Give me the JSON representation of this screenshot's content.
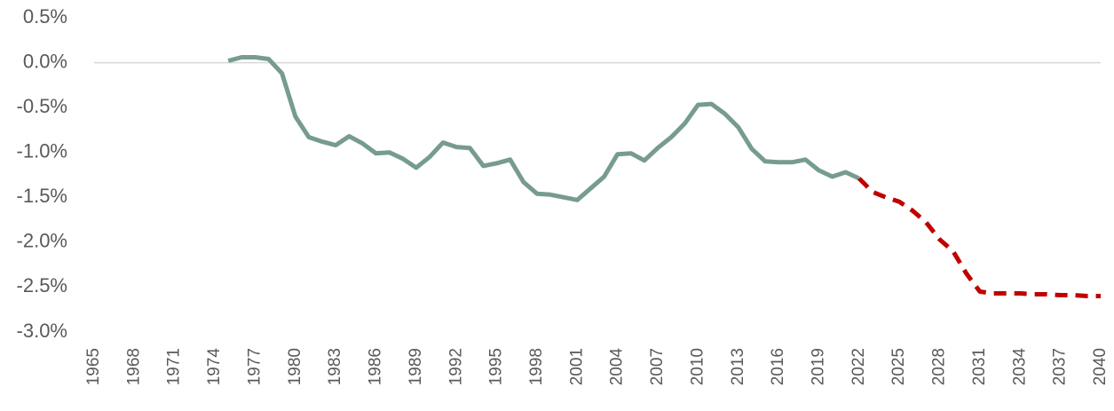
{
  "chart_data": {
    "type": "line",
    "x": [
      1975,
      1976,
      1977,
      1978,
      1979,
      1980,
      1981,
      1982,
      1983,
      1984,
      1985,
      1986,
      1987,
      1988,
      1989,
      1990,
      1991,
      1992,
      1993,
      1994,
      1995,
      1996,
      1997,
      1998,
      1999,
      2000,
      2001,
      2002,
      2003,
      2004,
      2005,
      2006,
      2007,
      2008,
      2009,
      2010,
      2011,
      2012,
      2013,
      2014,
      2015,
      2016,
      2017,
      2018,
      2019,
      2020,
      2021,
      2022,
      2023,
      2024,
      2025,
      2026,
      2027,
      2028,
      2029,
      2030,
      2031,
      2032,
      2033,
      2034,
      2035,
      2036,
      2037,
      2038,
      2039,
      2040
    ],
    "series": [
      {
        "color": "#779b91",
        "line_style": "solid",
        "values": [
          0.02,
          0.06,
          0.06,
          0.04,
          -0.12,
          -0.6,
          -0.83,
          -0.88,
          -0.92,
          -0.82,
          -0.9,
          -1.01,
          -1.0,
          -1.07,
          -1.17,
          -1.05,
          -0.89,
          -0.94,
          -0.95,
          -1.15,
          -1.12,
          -1.08,
          -1.33,
          -1.46,
          -1.47,
          -1.5,
          -1.53,
          -1.4,
          -1.27,
          -1.02,
          -1.01,
          -1.09,
          -0.95,
          -0.83,
          -0.68,
          -0.47,
          -0.46,
          -0.57,
          -0.72,
          -0.96,
          -1.1,
          -1.11,
          -1.11,
          -1.08,
          -1.2,
          -1.27,
          -1.22,
          -1.29,
          null,
          null,
          null,
          null,
          null,
          null,
          null,
          null,
          null,
          null,
          null,
          null,
          null,
          null,
          null,
          null,
          null,
          null
        ]
      },
      {
        "color": "#c00000",
        "line_style": "dashed",
        "values": [
          null,
          null,
          null,
          null,
          null,
          null,
          null,
          null,
          null,
          null,
          null,
          null,
          null,
          null,
          null,
          null,
          null,
          null,
          null,
          null,
          null,
          null,
          null,
          null,
          null,
          null,
          null,
          null,
          null,
          null,
          null,
          null,
          null,
          null,
          null,
          null,
          null,
          null,
          null,
          null,
          null,
          null,
          null,
          null,
          null,
          null,
          null,
          -1.29,
          -1.44,
          -1.5,
          -1.55,
          -1.65,
          -1.78,
          -1.97,
          -2.1,
          -2.35,
          -2.55,
          -2.57,
          -2.57,
          -2.57,
          -2.58,
          -2.58,
          -2.59,
          -2.59,
          -2.6,
          -2.6
        ]
      }
    ],
    "xlim": [
      1965,
      2040
    ],
    "xticks": [
      1965,
      1968,
      1971,
      1974,
      1977,
      1980,
      1983,
      1986,
      1989,
      1992,
      1995,
      1998,
      2001,
      2004,
      2007,
      2010,
      2013,
      2016,
      2019,
      2022,
      2025,
      2028,
      2031,
      2034,
      2037,
      2040
    ],
    "ylim": [
      -3.0,
      0.5
    ],
    "yticks": [
      {
        "value": 0.5,
        "label": "0.5%"
      },
      {
        "value": 0,
        "label": "0.0%"
      },
      {
        "value": -0.5,
        "label": "-0.5%"
      },
      {
        "value": -1.0,
        "label": "-1.0%"
      },
      {
        "value": -1.5,
        "label": "-1.5%"
      },
      {
        "value": -2.0,
        "label": "-2.0%"
      },
      {
        "value": -2.5,
        "label": "-2.5%"
      },
      {
        "value": -3.0,
        "label": "-3.0%"
      }
    ],
    "zero_line": true
  }
}
